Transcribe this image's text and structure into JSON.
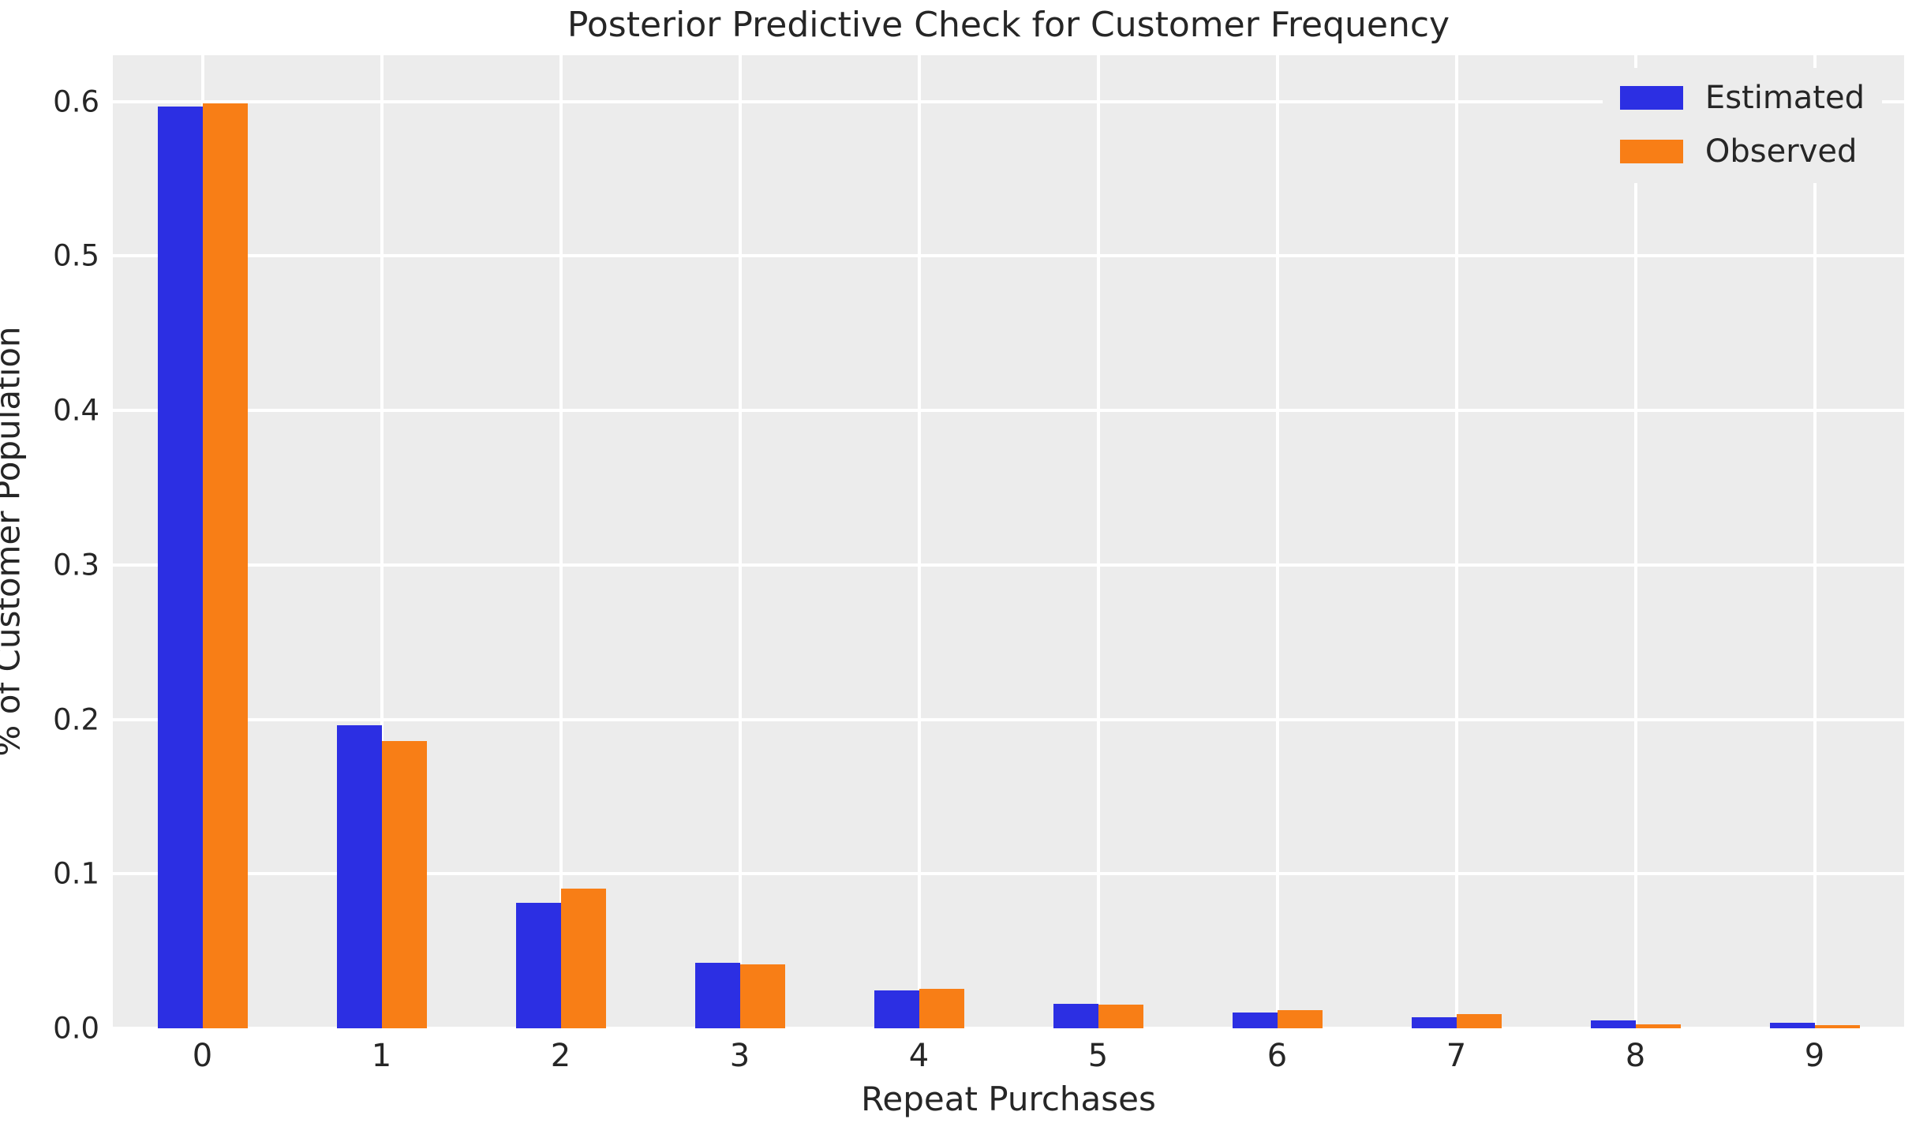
{
  "figure": {
    "background": "#ffffff",
    "plot_background": "#ececec",
    "grid_color": "#ffffff",
    "text_color": "#262626"
  },
  "chart_data": {
    "type": "bar",
    "title": "Posterior Predictive Check for Customer Frequency",
    "xlabel": "Repeat Purchases",
    "ylabel": "% of Customer Population",
    "categories": [
      "0",
      "1",
      "2",
      "3",
      "4",
      "5",
      "6",
      "7",
      "8",
      "9"
    ],
    "series": [
      {
        "name": "Estimated",
        "color": "#2c2fe3",
        "values": [
          0.597,
          0.196,
          0.081,
          0.0425,
          0.0245,
          0.0158,
          0.0102,
          0.0073,
          0.005,
          0.0036
        ]
      },
      {
        "name": "Observed",
        "color": "#f87e16",
        "values": [
          0.599,
          0.186,
          0.0905,
          0.0415,
          0.0258,
          0.0155,
          0.0119,
          0.0093,
          0.0027,
          0.002
        ]
      }
    ],
    "y_tick_values": [
      0.0,
      0.1,
      0.2,
      0.3,
      0.4,
      0.5,
      0.6
    ],
    "y_tick_labels": [
      "0.0",
      "0.1",
      "0.2",
      "0.3",
      "0.4",
      "0.5",
      "0.6"
    ],
    "ylim": [
      0,
      0.63
    ],
    "grid": true,
    "legend_position": "upper right"
  }
}
